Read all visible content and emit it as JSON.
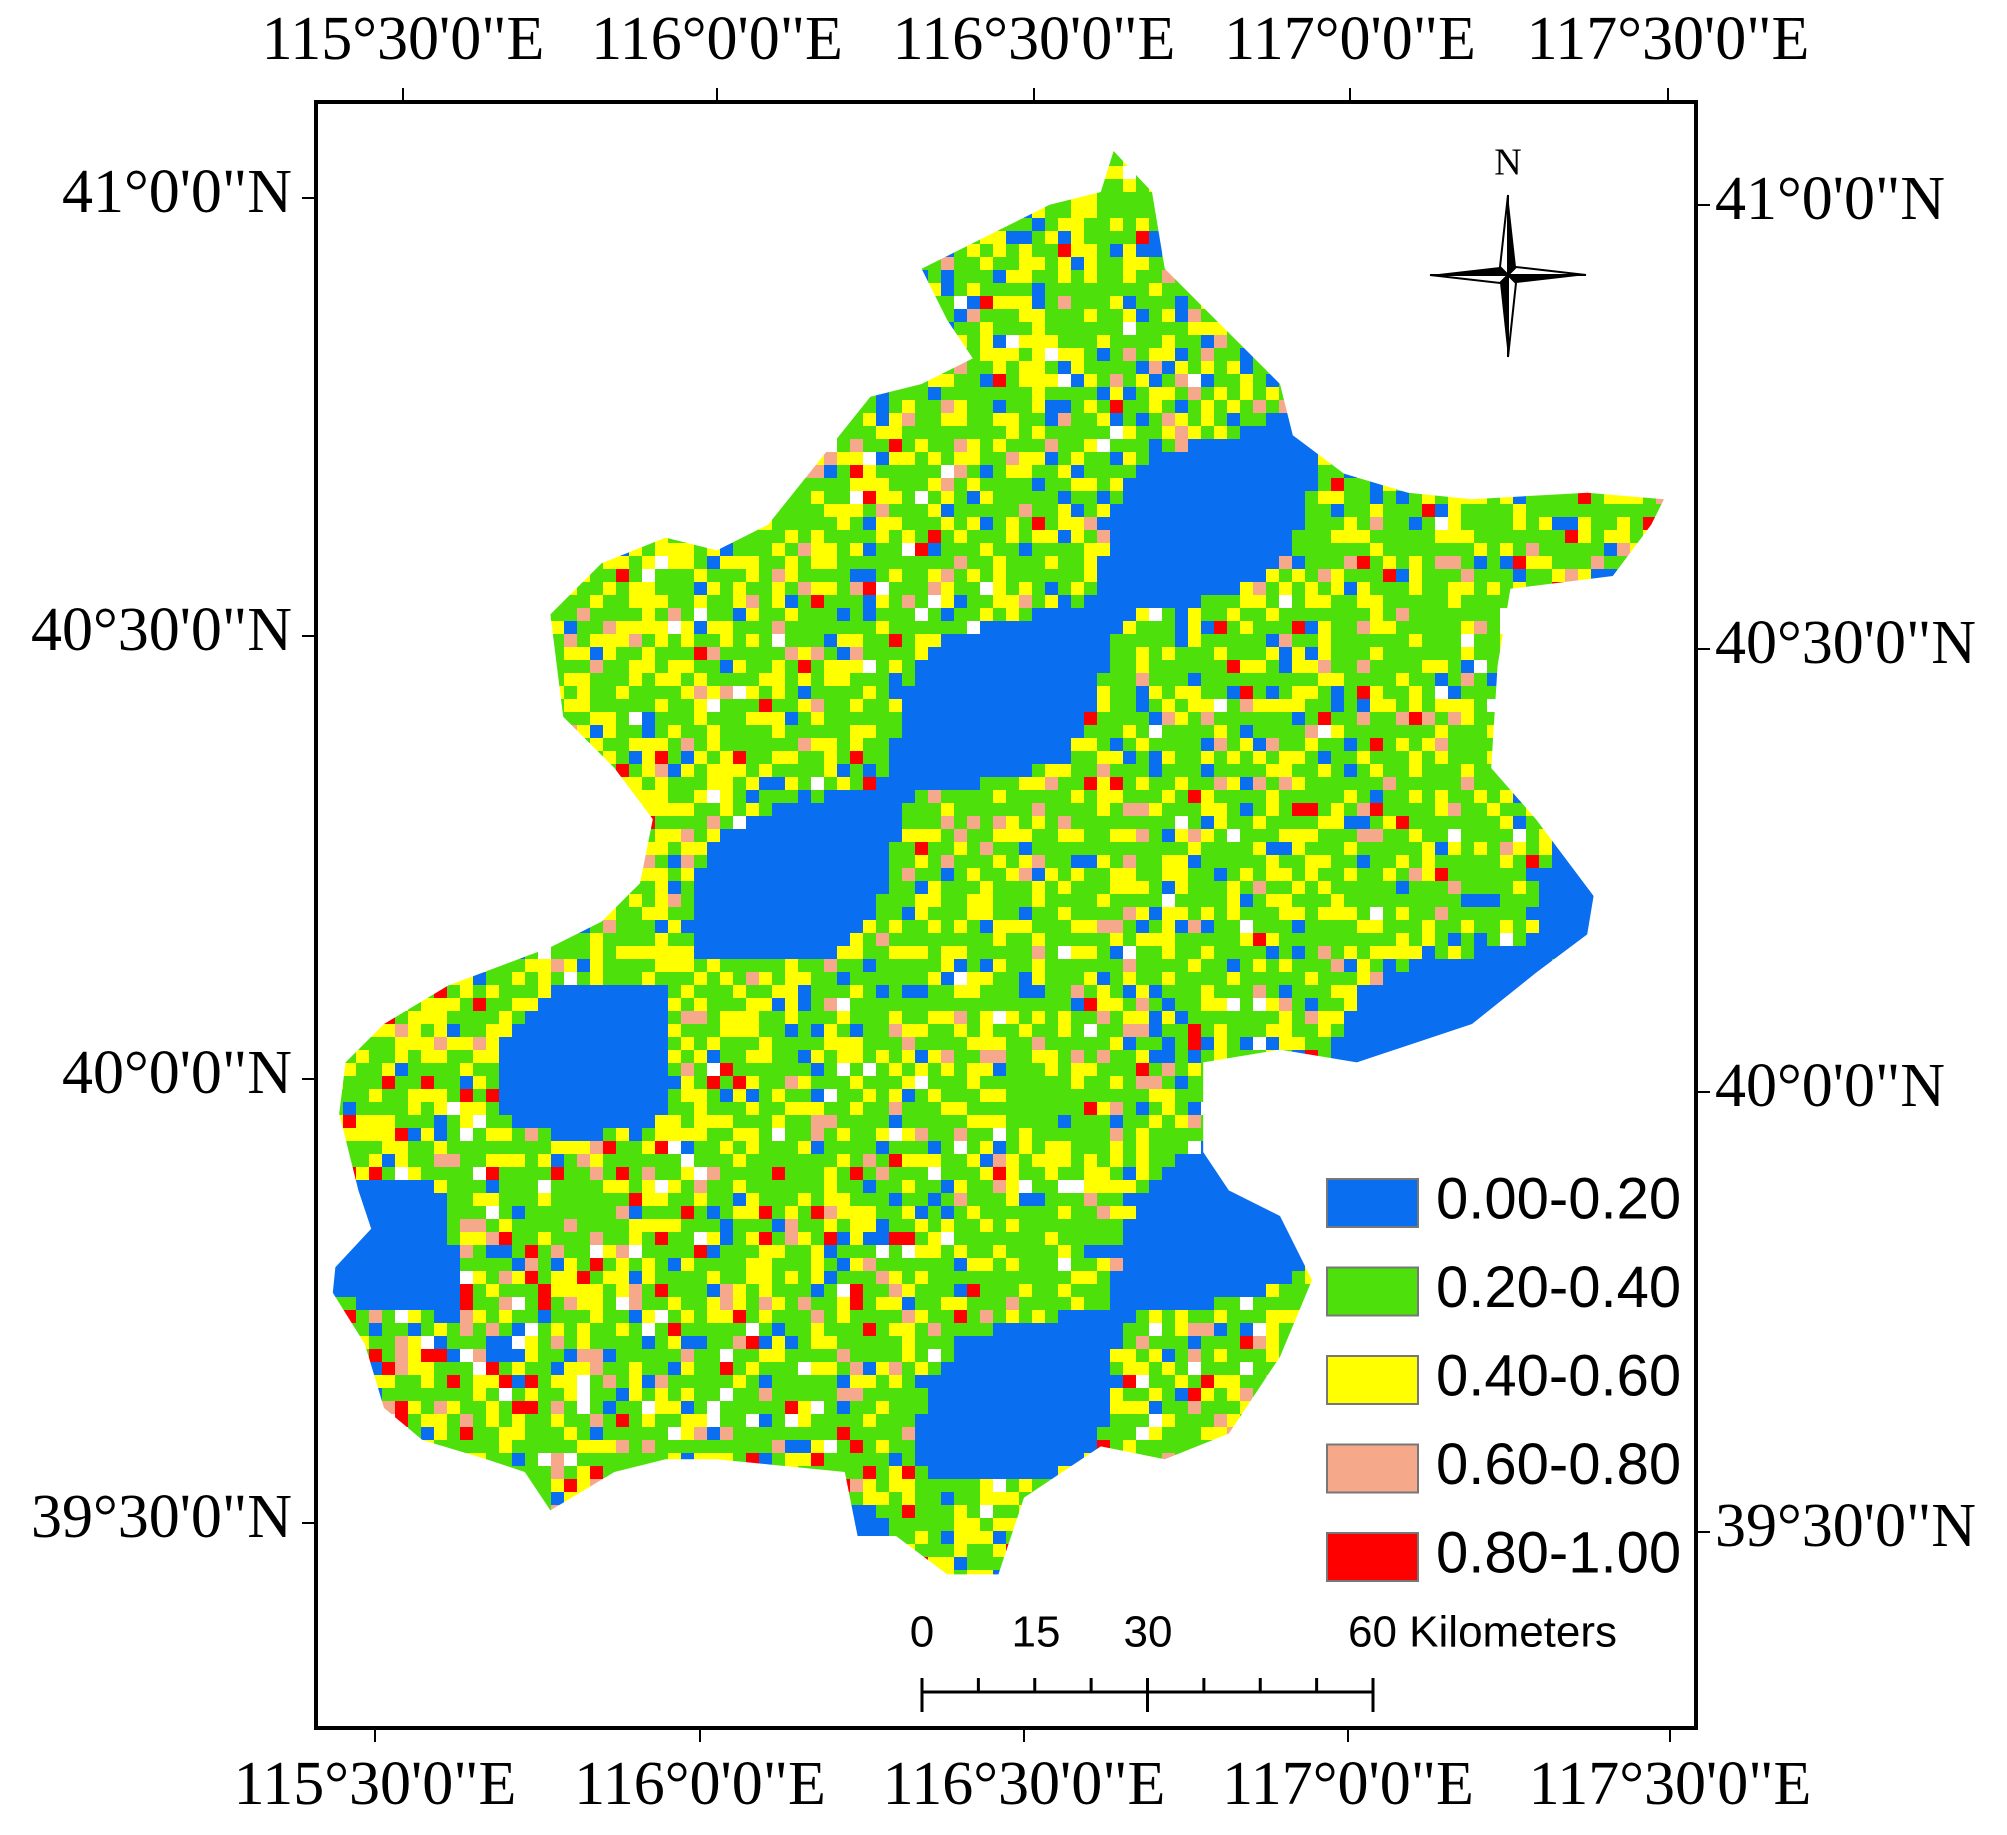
{
  "map": {
    "top_labels": [
      "115°30'0\"E",
      "116°0'0\"E",
      "116°30'0\"E",
      "117°0'0\"E",
      "117°30'0\"E"
    ],
    "bottom_labels": [
      "115°30'0\"E",
      "116°0'0\"E",
      "116°30'0\"E",
      "117°0'0\"E",
      "117°30'0\"E"
    ],
    "left_labels": [
      "41°0'0\"N",
      "40°30'0\"N",
      "40°0'0\"N",
      "39°30'0\"N"
    ],
    "right_labels": [
      "41°0'0\"N",
      "40°30'0\"N",
      "40°0'0\"N",
      "39°30'0\"N"
    ],
    "north": "N",
    "legend": [
      {
        "label": "0.00-0.20",
        "color": "#0a6ef0"
      },
      {
        "label": "0.20-0.40",
        "color": "#4ee00a"
      },
      {
        "label": "0.40-0.60",
        "color": "#ffff00"
      },
      {
        "label": "0.60-0.80",
        "color": "#f6a98a"
      },
      {
        "label": "0.80-1.00",
        "color": "#ff0000"
      }
    ],
    "scale_bar": [
      "0",
      "15",
      "30",
      "60 Kilometers"
    ]
  }
}
